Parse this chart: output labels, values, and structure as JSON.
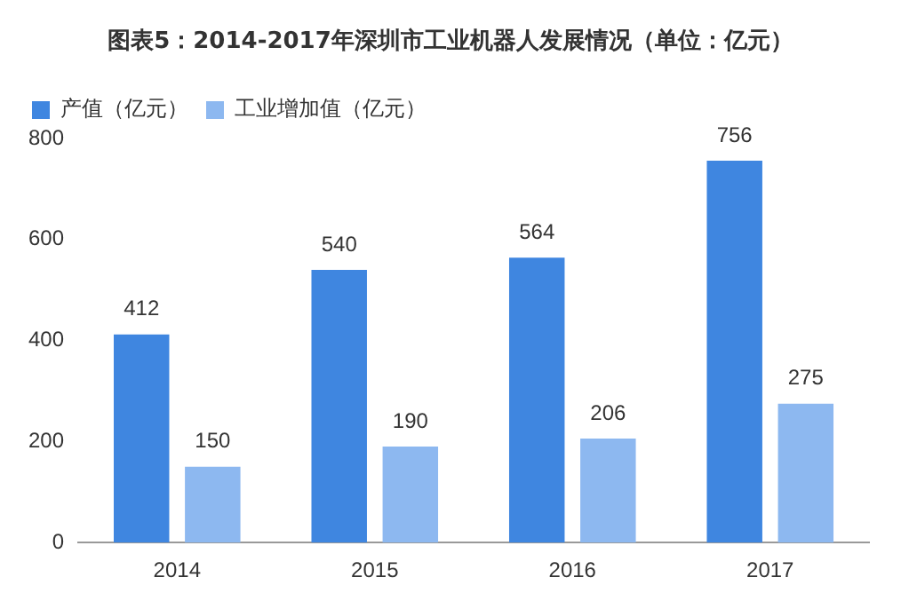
{
  "chart_data": {
    "type": "bar",
    "title": "图表5：2014-2017年深圳市工业机器人发展情况（单位：亿元）",
    "categories": [
      "2014",
      "2015",
      "2016",
      "2017"
    ],
    "series": [
      {
        "name": "产值（亿元）",
        "color": "#3f86e0",
        "values": [
          412,
          540,
          564,
          756
        ]
      },
      {
        "name": "工业增加值（亿元）",
        "color": "#8db8f0",
        "values": [
          150,
          190,
          206,
          275
        ]
      }
    ],
    "ylim": [
      0,
      800
    ],
    "yticks": [
      0,
      200,
      400,
      600,
      800
    ],
    "grid": false,
    "legend": "top left",
    "data_labels": true
  }
}
